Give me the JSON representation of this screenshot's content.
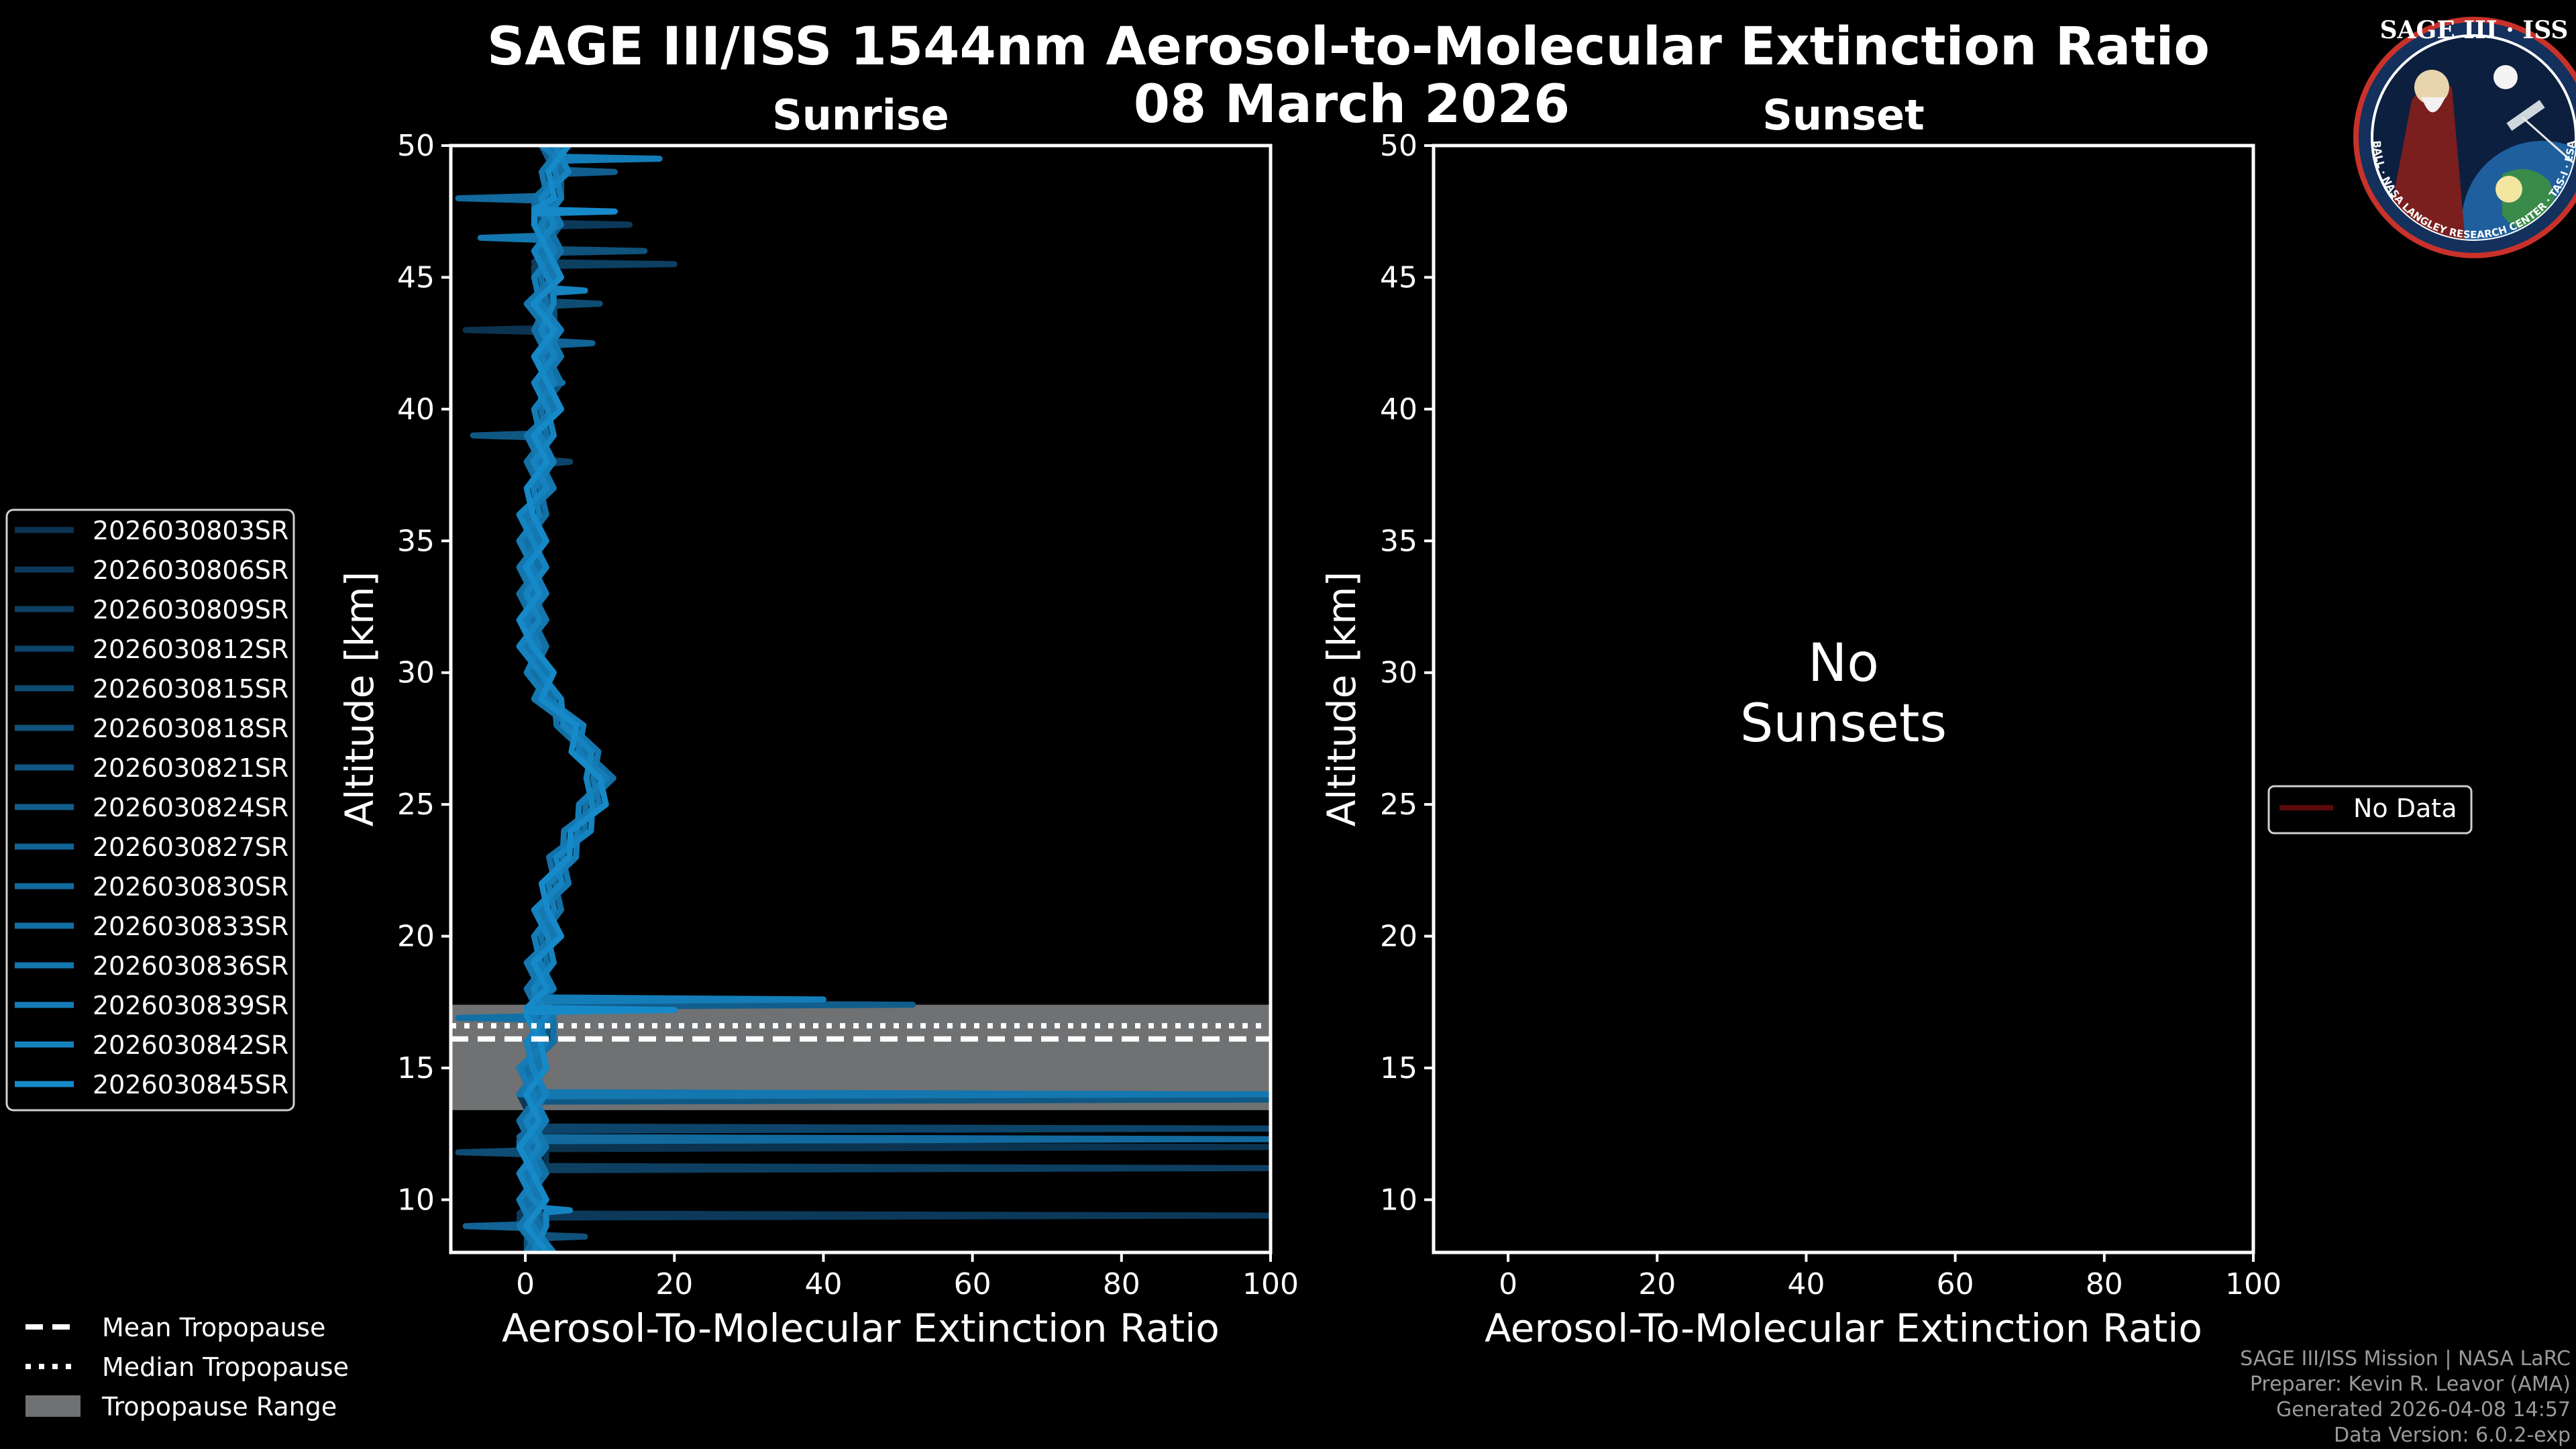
{
  "figure": {
    "title": "SAGE III/ISS 1544nm Aerosol-to-Molecular Extinction Ratio",
    "date": "08 March 2026"
  },
  "logo": {
    "title": "SAGE III · ISS",
    "ring_text": "BALL · NASA LANGLEY RESEARCH CENTER · TAS-I · ESA"
  },
  "credits": {
    "line1": "SAGE III/ISS Mission | NASA LaRC",
    "line2": "Preparer: Kevin R. Leavor (AMA)",
    "line3": "Generated 2026-04-08 14:57",
    "line4": "Data Version: 6.0.2-exp"
  },
  "legend_left": {
    "entries": [
      "2026030803SR",
      "2026030806SR",
      "2026030809SR",
      "2026030812SR",
      "2026030815SR",
      "2026030818SR",
      "2026030821SR",
      "2026030824SR",
      "2026030827SR",
      "2026030830SR",
      "2026030833SR",
      "2026030836SR",
      "2026030839SR",
      "2026030842SR",
      "2026030845SR"
    ]
  },
  "legend_tropopause": {
    "mean": "Mean Tropopause",
    "median": "Median Tropopause",
    "range": "Tropopause Range"
  },
  "legend_right": {
    "entry": "No Data"
  },
  "no_data_text": {
    "line1": "No",
    "line2": "Sunsets"
  },
  "colors": {
    "background": "#000000",
    "profile_dark": "#0b3350",
    "profile_light": "#1689c9",
    "tropopause_range": "#6f7173",
    "no_data": "#5a0a0a"
  },
  "chart_data": [
    {
      "type": "line",
      "title": "Sunrise",
      "xlabel": "Aerosol-To-Molecular Extinction Ratio",
      "ylabel": "Altitude [km]",
      "xlim": [
        -10,
        100
      ],
      "ylim": [
        8,
        50
      ],
      "xticks": [
        0,
        20,
        40,
        60,
        80,
        100
      ],
      "yticks": [
        10,
        15,
        20,
        25,
        30,
        35,
        40,
        45,
        50
      ],
      "tropopause": {
        "mean": 16.1,
        "median": 16.6,
        "range": [
          13.4,
          17.4
        ]
      },
      "altitudes": [
        8,
        9,
        10,
        11,
        12,
        13,
        14,
        15,
        16,
        17,
        18,
        19,
        20,
        21,
        22,
        23,
        24,
        25,
        26,
        27,
        28,
        29,
        30,
        31,
        32,
        33,
        34,
        35,
        36,
        37,
        38,
        39,
        40,
        41,
        42,
        43,
        44,
        45,
        46,
        47,
        48,
        49,
        50
      ],
      "base_profile": [
        2,
        1,
        1,
        1,
        1,
        1,
        1,
        1,
        2,
        2,
        2,
        2,
        3,
        3,
        4,
        5,
        7,
        9,
        10,
        8,
        6,
        3,
        2,
        1,
        1,
        1,
        1,
        1,
        1,
        2,
        2,
        2,
        3,
        3,
        3,
        3,
        2,
        3,
        3,
        3,
        3,
        4,
        4
      ],
      "series": [
        {
          "name": "2026030803SR",
          "spikes": [
            [
              12.0,
              100
            ],
            [
              43.0,
              -8
            ]
          ]
        },
        {
          "name": "2026030806SR",
          "spikes": [
            [
              9.4,
              100
            ],
            [
              47.0,
              14
            ]
          ]
        },
        {
          "name": "2026030809SR",
          "spikes": [
            [
              11.2,
              100
            ],
            [
              45.5,
              20
            ]
          ]
        },
        {
          "name": "2026030812SR",
          "spikes": [
            [
              12.7,
              100
            ],
            [
              38.0,
              6
            ]
          ]
        },
        {
          "name": "2026030815SR",
          "spikes": [
            [
              11.8,
              -9
            ],
            [
              44.0,
              10
            ]
          ]
        },
        {
          "name": "2026030818SR",
          "spikes": [
            [
              8.6,
              8
            ],
            [
              46.0,
              16
            ]
          ]
        },
        {
          "name": "2026030821SR",
          "spikes": [
            [
              13.8,
              100
            ],
            [
              39.0,
              -7
            ]
          ]
        },
        {
          "name": "2026030824SR",
          "spikes": [
            [
              17.4,
              52
            ],
            [
              49.0,
              12
            ]
          ]
        },
        {
          "name": "2026030827SR",
          "spikes": [
            [
              9.0,
              -8
            ],
            [
              42.5,
              9
            ]
          ]
        },
        {
          "name": "2026030830SR",
          "spikes": [
            [
              12.3,
              100
            ],
            [
              48.0,
              -9
            ]
          ]
        },
        {
          "name": "2026030833SR",
          "spikes": [
            [
              16.9,
              -9
            ],
            [
              41.0,
              5
            ]
          ]
        },
        {
          "name": "2026030836SR",
          "spikes": [
            [
              14.0,
              100
            ],
            [
              46.5,
              -6
            ]
          ]
        },
        {
          "name": "2026030839SR",
          "spikes": [
            [
              17.6,
              40
            ],
            [
              49.5,
              18
            ]
          ]
        },
        {
          "name": "2026030842SR",
          "spikes": [
            [
              9.6,
              6
            ],
            [
              44.5,
              8
            ]
          ]
        },
        {
          "name": "2026030845SR",
          "spikes": [
            [
              17.2,
              20
            ],
            [
              47.5,
              12
            ]
          ]
        }
      ]
    },
    {
      "type": "line",
      "title": "Sunset",
      "xlabel": "Aerosol-To-Molecular Extinction Ratio",
      "ylabel": "Altitude [km]",
      "xlim": [
        -10,
        100
      ],
      "ylim": [
        8,
        50
      ],
      "xticks": [
        0,
        20,
        40,
        60,
        80,
        100
      ],
      "yticks": [
        10,
        15,
        20,
        25,
        30,
        35,
        40,
        45,
        50
      ],
      "series": []
    }
  ]
}
